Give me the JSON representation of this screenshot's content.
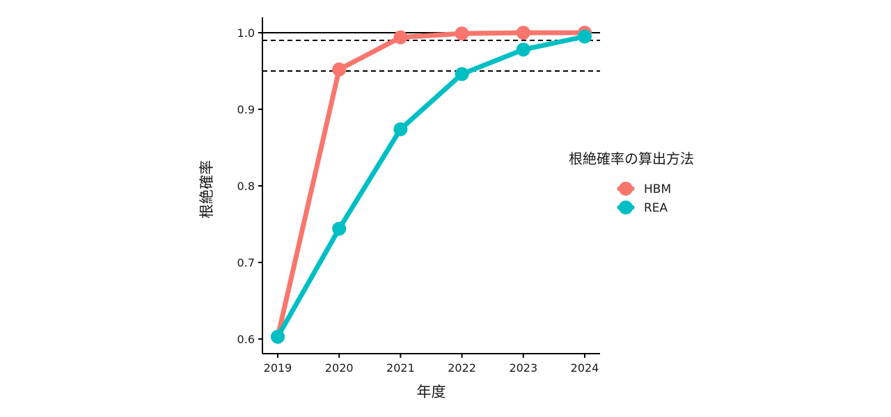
{
  "chart_data": {
    "type": "line",
    "xlabel": "年度",
    "ylabel": "根絶確率",
    "x": [
      "2019",
      "2020",
      "2021",
      "2022",
      "2023",
      "2024"
    ],
    "ylim": [
      0.6,
      1.0
    ],
    "yticks": [
      "0.6",
      "0.7",
      "0.8",
      "0.9",
      "1.0"
    ],
    "series": [
      {
        "name": "HBM",
        "color": "#F8766D",
        "values": [
          0.603,
          0.952,
          0.994,
          0.999,
          1.0,
          1.0
        ]
      },
      {
        "name": "REA",
        "color": "#00BFC4",
        "values": [
          0.603,
          0.744,
          0.874,
          0.946,
          0.978,
          0.995
        ]
      }
    ],
    "reference_lines": [
      {
        "y": 1.0,
        "style": "solid"
      },
      {
        "y": 0.99,
        "style": "dashed"
      },
      {
        "y": 0.95,
        "style": "dashed"
      }
    ],
    "legend": {
      "title": "根絶確率の算出方法",
      "position": "right"
    },
    "grid": false
  }
}
